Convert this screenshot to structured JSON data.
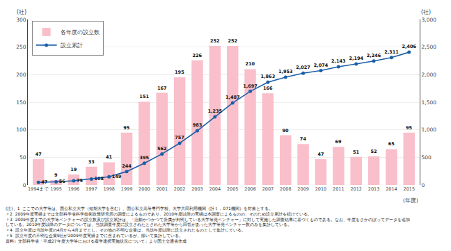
{
  "chart_data": {
    "type": "bar",
    "categories": [
      "1994まで",
      "1995",
      "1996",
      "1997",
      "1998",
      "1999",
      "2000",
      "2001",
      "2002",
      "2003",
      "2004",
      "2005",
      "2006",
      "2007",
      "2008",
      "2009",
      "2010",
      "2011",
      "2012",
      "2013",
      "2014",
      "2015"
    ],
    "series": [
      {
        "name": "各年度の設立数",
        "type": "bar",
        "color": "#f9bfca",
        "values": [
          47,
          9,
          19,
          33,
          41,
          95,
          151,
          167,
          195,
          226,
          252,
          252,
          210,
          166,
          90,
          74,
          47,
          69,
          51,
          52,
          65,
          95
        ]
      },
      {
        "name": "設立累計",
        "type": "line",
        "axis": "y2",
        "color": "#1a5fa8",
        "marker": "circle",
        "line_style": "solid",
        "values": [
          47,
          56,
          75,
          108,
          149,
          244,
          395,
          562,
          757,
          983,
          1235,
          1487,
          1697,
          1863,
          1953,
          2027,
          2074,
          2143,
          2194,
          2246,
          2311,
          2406
        ],
        "value_labels": [
          "47",
          "56",
          "75",
          "108",
          "149",
          "244",
          "395",
          "562",
          "757",
          "983",
          "1,235",
          "1,487",
          "1,697",
          "1,863",
          "1,953",
          "2,027",
          "2,074",
          "2,143",
          "2,194",
          "2,246",
          "2,311",
          "2,406"
        ]
      }
    ],
    "ylim": [
      0,
      300
    ],
    "yticks": [
      0,
      50,
      100,
      150,
      200,
      250,
      300
    ],
    "y2lim": [
      0,
      3000
    ],
    "y2ticks": [
      0,
      500,
      {
        "value": 1000,
        "label": "1,000"
      },
      {
        "value": 1500,
        "label": "1,500"
      },
      {
        "value": 2000,
        "label": "2,000"
      },
      {
        "value": 2500,
        "label": "2,500"
      },
      {
        "value": 3000,
        "label": "3,000"
      }
    ],
    "ylabel": "(社)",
    "y2label": "(社)",
    "xlabel": "(年度)",
    "annotations": [
      "(注)、1  ここでの大学等は、国公私立大学（短期大学を含む）、国公私立高等専門学校、大学共同利用機関（計１，071機関）を対象とする。",
      "〃2  2009年度実績までは文部科学省科学技術政策研究所の調査によるものであり、2010年度以降の実績は本調査によるものの、そのため設立累計を続けている。",
      "〃3  2009年度までの大学等ベンチャーの設立数及び設立累計は、「活動かつかつて所属が判明している大学等発ベンチャー」に対して実施した調査結果に基づくものである。なお、年度をさかのぼってデータを追加している。2010年度以降のデータについては、当該調査年度に設立されたとされた大学等から回答があった大学等発ベンチャー数のみを集計している。",
      "〃4  設立年度は当該年度の4月から4月までとし、その他の不明な企業は、当該年度以降に設立されたものとして集計している。",
      "〃5  設立年度の不明な企業9社が2009年度実績までに含まれているが、除いて集計している。",
      "資料）文部科学省「平成27年度大学等における産学連携実施状況について」より国土交通省作成"
    ],
    "grid": true,
    "legend": "upper left",
    "data_labels": true
  }
}
